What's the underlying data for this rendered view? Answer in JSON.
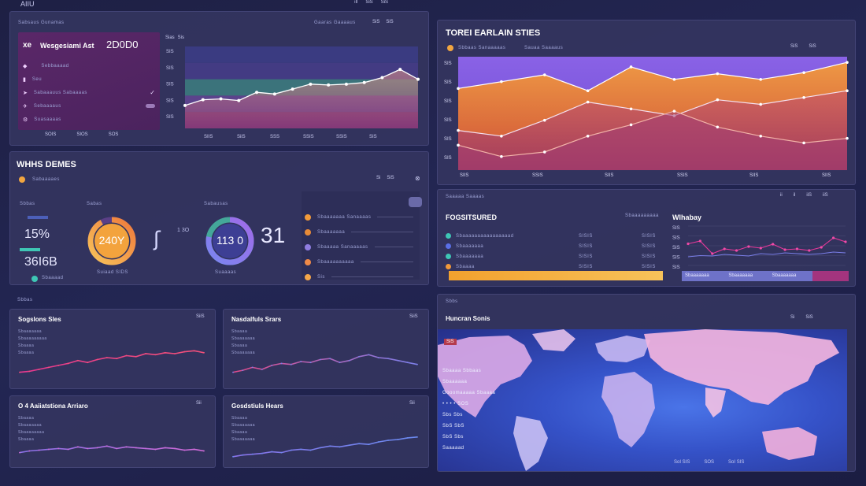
{
  "app": {
    "title": "AIIU"
  },
  "top_controls": [
    "ıll",
    "SiS",
    "SiS"
  ],
  "panel_a": {
    "header": "Sabsaus Gunamas",
    "header_right": "Gaaras Gaaaaus",
    "ctl": [
      "SiS",
      "SiS"
    ],
    "sidebar": {
      "code": "xe",
      "title": "Wesgesiami Ast",
      "value": "2D0D0",
      "items": [
        {
          "icon": "bookmark-icon",
          "label": "Sebbaaaad"
        },
        {
          "icon": "chart-icon",
          "label": "Seu"
        },
        {
          "icon": "send-icon",
          "label": "Sabaaauus Sabaaaas"
        },
        {
          "icon": "plane-icon",
          "label": "Sebaaaaus"
        },
        {
          "icon": "gear-icon",
          "label": "Suasaaaas"
        }
      ],
      "footer": [
        "SOIS",
        "SIOS",
        "SOS"
      ]
    },
    "chart_tabs": [
      "Sias",
      "Sis"
    ],
    "y_ticks": [
      "SIS",
      "SIS",
      "SIS",
      "SIS",
      "SIS"
    ],
    "x_ticks": [
      "SIIS",
      "SiiS",
      "SSS",
      "SSIS",
      "SSIS",
      "SIS"
    ],
    "chart_data": {
      "type": "area",
      "x": [
        1,
        2,
        3,
        4,
        5,
        6,
        7,
        8,
        9,
        10,
        11,
        12,
        13,
        14
      ],
      "series": [
        {
          "values": [
            28,
            35,
            36,
            34,
            44,
            42,
            48,
            54,
            53,
            54,
            56,
            62,
            72,
            60
          ]
        }
      ],
      "ylim": [
        0,
        100
      ]
    }
  },
  "panel_b": {
    "title": "TOREI EARLAIN STIES",
    "sub": "Sbbaas Sanaaaaas",
    "sub_right": "Sauaa Saaaaus",
    "ctl": [
      "SiS",
      "SiS"
    ],
    "y_ticks": [
      "SIS",
      "SIS",
      "SIS",
      "SIS",
      "SIS",
      "SIS"
    ],
    "x_ticks": [
      "SIIS",
      "SSIS",
      "SIIS",
      "SSIS",
      "SIIS",
      "SIIS"
    ],
    "chart_data": {
      "type": "line",
      "x": [
        1,
        2,
        3,
        4,
        5,
        6,
        7,
        8,
        9,
        10
      ],
      "series": [
        {
          "values": [
            72,
            78,
            84,
            70,
            91,
            80,
            85,
            80,
            86,
            95
          ]
        },
        {
          "values": [
            35,
            30,
            44,
            60,
            54,
            48,
            62,
            58,
            64,
            70
          ]
        },
        {
          "values": [
            22,
            12,
            16,
            30,
            40,
            52,
            38,
            30,
            24,
            28
          ]
        }
      ],
      "ylim": [
        0,
        100
      ]
    }
  },
  "panel_c": {
    "title": "WHHS DEMES",
    "sub": "Sabaaaaes",
    "ctl": [
      "Si",
      "SiS"
    ],
    "left": {
      "label1": "Sbbas",
      "label2": "Sbasas",
      "value1": "15%",
      "label3": "Sbaaaaaa",
      "value2": "36I6B",
      "foot": "Sbaaaad"
    },
    "gauge1": {
      "label": "Sabas",
      "value": "240Y",
      "foot": "Suiaad SIDS",
      "fraction": 0.92
    },
    "gauge2": {
      "label": "Sabausas",
      "value": "113 0",
      "side": "1 3O",
      "big": "31",
      "foot": "Suaaaas",
      "fraction": 0.78
    },
    "list": [
      {
        "label": "Sbaaaaaaa Sanaaaas",
        "color": "#f29a3a"
      },
      {
        "label": "Sbaaaaaaa",
        "color": "#e88b38"
      },
      {
        "label": "Sbaaaaa Sanaaaaas",
        "color": "#8f7de0"
      },
      {
        "label": "Sbaaaaaaaaaa",
        "color": "#f08a48"
      },
      {
        "label": "Sis",
        "color": "#f4a64a"
      }
    ]
  },
  "panel_d": {
    "header": "Saaaaa Saaaas",
    "ctl": [
      "ii",
      "il",
      "iiS",
      "iiS"
    ],
    "left_title": "FOGSITSURED",
    "left_sub": "Sbaaaaaaaaa",
    "rows": [
      {
        "label": "Sbaaaaaaaaaaaaaaaad",
        "v1": "SISIS",
        "v2": "SISIS",
        "color": "#3ec6b5"
      },
      {
        "label": "Sbaaaaaaa",
        "v1": "SISIS",
        "v2": "SISIS",
        "color": "#5a6fe6"
      },
      {
        "label": "Sbaaaaaaa",
        "v1": "SISIS",
        "v2": "SISIS",
        "color": "#3ec6b5"
      },
      {
        "label": "Sbaaaa",
        "v1": "SISIS",
        "v2": "SISIS",
        "color": "#f0983a"
      }
    ],
    "right_title": "Wlhabay",
    "y_ticks": [
      "SIS",
      "SIS",
      "SIS",
      "SIS",
      "SIS"
    ],
    "legend": [
      "Sbaaaaaaa",
      "Sbaaaaaaa",
      "Sbaaaaaaa"
    ],
    "chart_data": {
      "type": "line",
      "x": [
        1,
        2,
        3,
        4,
        5,
        6,
        7,
        8,
        9,
        10,
        11,
        12,
        13,
        14
      ],
      "series": [
        {
          "values": [
            55,
            62,
            30,
            42,
            38,
            48,
            44,
            54,
            40,
            42,
            38,
            46,
            70,
            60
          ]
        },
        {
          "values": [
            22,
            25,
            24,
            28,
            26,
            24,
            30,
            28,
            32,
            30,
            28,
            30,
            34,
            32
          ]
        }
      ],
      "ylim": [
        0,
        100
      ]
    }
  },
  "panel_e": {
    "label": "Sbbas",
    "cards": [
      {
        "title": "Sogslons Sles",
        "ctl": "SiiS",
        "lines": [
          "Sbaaaaaaa",
          "Sbaaaaaaaaa",
          "Sbaaaa",
          "Sbaaaa"
        ],
        "chart_data": {
          "type": "line",
          "x": [
            1,
            2,
            3,
            4,
            5,
            6,
            7,
            8,
            9,
            10,
            11,
            12,
            13,
            14,
            15,
            16,
            17,
            18,
            19,
            20
          ],
          "series": [
            {
              "values": [
                20,
                22,
                26,
                30,
                34,
                38,
                44,
                40,
                46,
                50,
                48,
                54,
                52,
                58,
                56,
                60,
                58,
                62,
                64,
                60
              ]
            }
          ],
          "ylim": [
            0,
            100
          ]
        }
      },
      {
        "title": "Nasdalfuls Srars",
        "ctl": "SiiS",
        "lines": [
          "Sbaaaa",
          "Sbaaaaaaa",
          "Sbaaaa",
          "Sbaaaaaaa"
        ],
        "chart_data": {
          "type": "line",
          "x": [
            1,
            2,
            3,
            4,
            5,
            6,
            7,
            8,
            9,
            10,
            11,
            12,
            13,
            14,
            15,
            16,
            17,
            18,
            19,
            20
          ],
          "series": [
            {
              "values": [
                20,
                24,
                30,
                26,
                34,
                38,
                36,
                42,
                40,
                46,
                48,
                40,
                44,
                52,
                56,
                50,
                48,
                44,
                40,
                36
              ]
            }
          ],
          "ylim": [
            0,
            100
          ]
        }
      },
      {
        "title": "O 4 Aaiiatstiona Arriaro",
        "ctl": "Sii",
        "lines": [
          "Sbaaaa",
          "Sbaaaaaaa",
          "Sbaaaaaaaa",
          "Sbaaaa"
        ],
        "chart_data": {
          "type": "line",
          "x": [
            1,
            2,
            3,
            4,
            5,
            6,
            7,
            8,
            9,
            10,
            11,
            12,
            13,
            14,
            15,
            16,
            17,
            18,
            19,
            20
          ],
          "series": [
            {
              "values": [
                20,
                24,
                26,
                28,
                30,
                28,
                34,
                30,
                32,
                36,
                30,
                34,
                32,
                30,
                28,
                32,
                30,
                26,
                28,
                24
              ]
            }
          ],
          "ylim": [
            0,
            100
          ]
        }
      },
      {
        "title": "Gosdstiuls Hears",
        "ctl": "Sii",
        "lines": [
          "Sbaaaa",
          "Sbaaaaaaa",
          "Sbaaaa",
          "Sbaaaaaaa"
        ],
        "chart_data": {
          "type": "line",
          "x": [
            1,
            2,
            3,
            4,
            5,
            6,
            7,
            8,
            9,
            10,
            11,
            12,
            13,
            14,
            15,
            16,
            17,
            18,
            19,
            20
          ],
          "series": [
            {
              "values": [
                10,
                14,
                16,
                18,
                22,
                20,
                26,
                28,
                26,
                32,
                36,
                34,
                38,
                42,
                40,
                46,
                50,
                52,
                56,
                58
              ]
            }
          ],
          "ylim": [
            0,
            100
          ]
        }
      }
    ]
  },
  "panel_f": {
    "label": "Sbbs",
    "title": "Huncran Sonis",
    "ctl": [
      "Si",
      "SiS"
    ],
    "badge": "SIS",
    "labels": [
      "Sbaaaa Sbbaas",
      "Sbaaaaaa",
      "Gooomaaaaa Sbaaaa",
      "• • • • SOS",
      "Sbs Sbs",
      "SbS SbS",
      "SbS Sbs",
      "Saaaaad"
    ],
    "footer": [
      "SoI SIS",
      "SOS",
      "SoI SIS"
    ]
  }
}
